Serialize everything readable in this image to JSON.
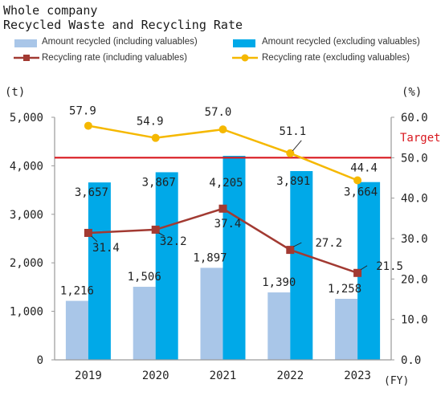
{
  "title_line1": "Whole company",
  "title_line2": "Recycled Waste and Recycling Rate",
  "colors": {
    "bar_incl": "#a9c6e8",
    "bar_excl": "#00a9e8",
    "line_incl": "#a23a32",
    "line_excl": "#f5b800",
    "target": "#d9181f",
    "axis": "#9a9a9a"
  },
  "chart_data": {
    "type": "bar",
    "categories": [
      "2019",
      "2020",
      "2021",
      "2022",
      "2023"
    ],
    "series": [
      {
        "name": "Amount recycled (including valuables)",
        "kind": "bar",
        "axis": "left",
        "values": [
          1216,
          1506,
          1897,
          1390,
          1258
        ],
        "labels": [
          "1,216",
          "1,506",
          "1,897",
          "1,390",
          "1,258"
        ]
      },
      {
        "name": "Amount recycled (excluding valuables)",
        "kind": "bar",
        "axis": "left",
        "values": [
          3657,
          3867,
          4205,
          3891,
          3664
        ],
        "labels": [
          "3,657",
          "3,867",
          "4,205",
          "3,891",
          "3,664"
        ]
      },
      {
        "name": "Recycling rate (including valuables)",
        "kind": "line",
        "axis": "right",
        "values": [
          31.4,
          32.2,
          37.4,
          27.2,
          21.5
        ],
        "labels": [
          "31.4",
          "32.2",
          "37.4",
          "27.2",
          "21.5"
        ]
      },
      {
        "name": "Recycling rate (excluding valuables)",
        "kind": "line",
        "axis": "right",
        "values": [
          57.9,
          54.9,
          57.0,
          51.1,
          44.4
        ],
        "labels": [
          "57.9",
          "54.9",
          "57.0",
          "51.1",
          "44.4"
        ]
      }
    ],
    "target": {
      "label": "Target",
      "value": 50.0
    },
    "y_left": {
      "unit": "(t)",
      "ylim": [
        0,
        5000
      ],
      "ticks": [
        "0",
        "1,000",
        "2,000",
        "3,000",
        "4,000",
        "5,000"
      ]
    },
    "y_right": {
      "unit": "(%)",
      "ylim": [
        0,
        60
      ],
      "ticks": [
        "0.0",
        "10.0",
        "20.0",
        "30.0",
        "40.0",
        "50.0",
        "60.0"
      ]
    },
    "x_unit": "(FY)",
    "legend": "top",
    "grid": false
  }
}
